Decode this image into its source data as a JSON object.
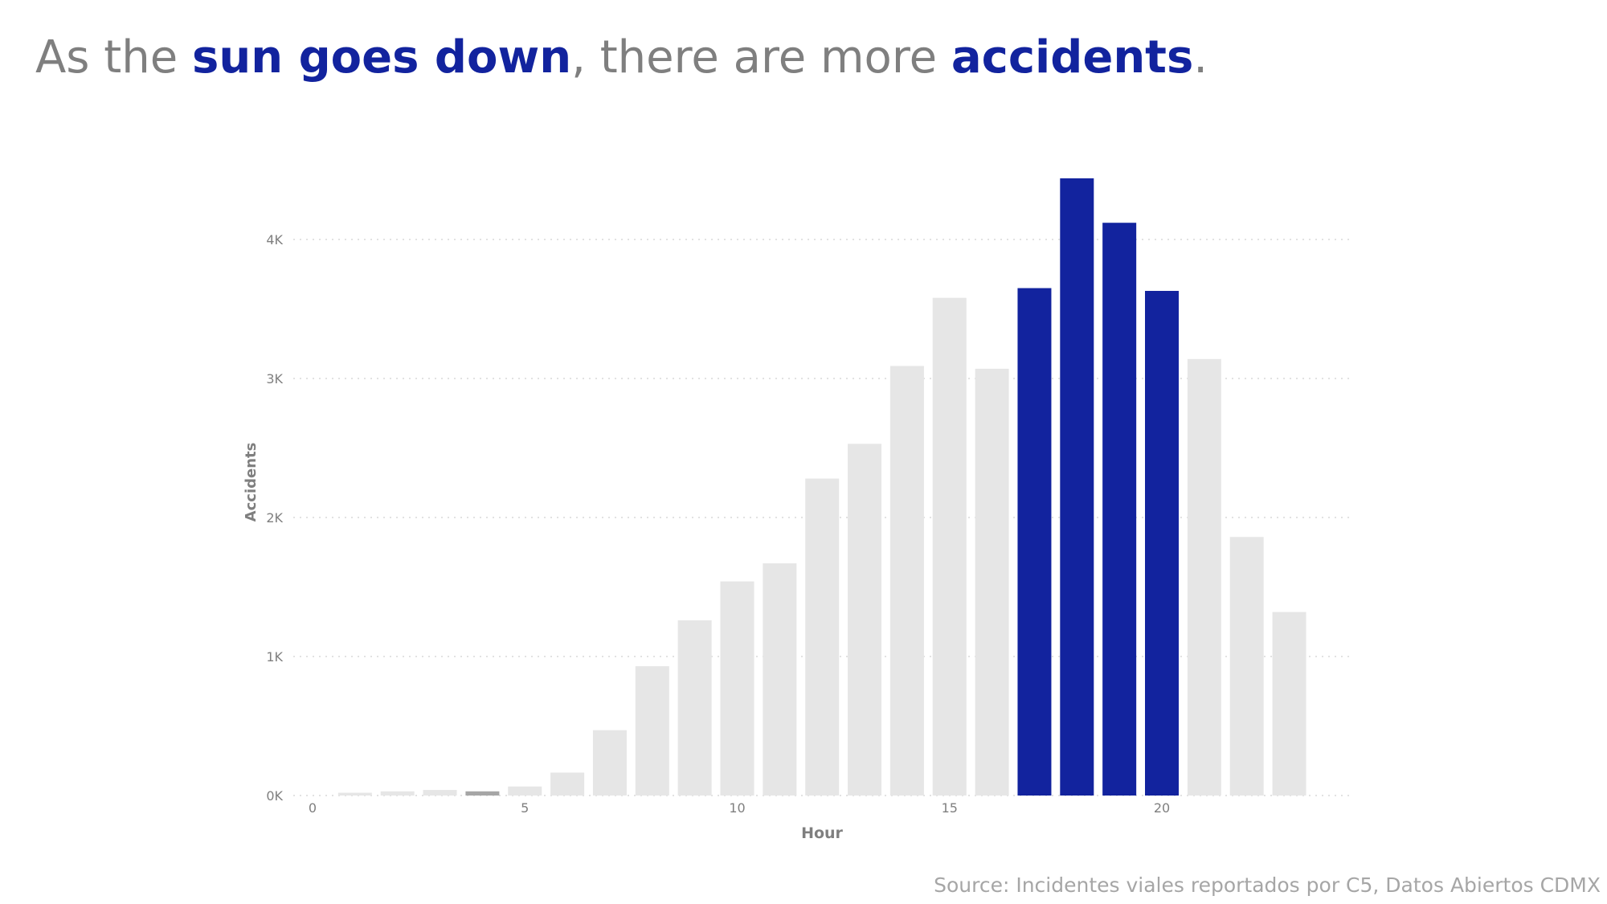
{
  "title": {
    "part1": "As the ",
    "highlight1": "sun goes down",
    "part2": ", there are more ",
    "highlight2": "accidents",
    "part3": "."
  },
  "source": "Source: Incidentes viales reportados por C5, Datos Abiertos CDMX",
  "colors": {
    "highlight": "#12239e",
    "base": "#e6e6e6",
    "low_hour_bar": "#a6a6a6",
    "text_muted": "#7f7f7f",
    "gridline": "#d9d9d9"
  },
  "chart_data": {
    "type": "bar",
    "xlabel": "Hour",
    "ylabel": "Accidents",
    "x_ticks": [
      "0",
      "5",
      "10",
      "15",
      "20"
    ],
    "y_ticks": [
      "0K",
      "1K",
      "2K",
      "3K",
      "4K"
    ],
    "ylim": [
      0,
      4700
    ],
    "grid": true,
    "categories": [
      0,
      1,
      2,
      3,
      4,
      5,
      6,
      7,
      8,
      9,
      10,
      11,
      12,
      13,
      14,
      15,
      16,
      17,
      18,
      19,
      20,
      21,
      22,
      23
    ],
    "values": [
      0,
      20,
      30,
      40,
      30,
      65,
      165,
      470,
      930,
      1260,
      1540,
      1670,
      2280,
      2530,
      3090,
      3580,
      3070,
      3650,
      4440,
      4120,
      3630,
      3140,
      1860,
      1320
    ],
    "highlighted_hours": [
      17,
      18,
      19,
      20
    ],
    "darker_hours": [
      4
    ]
  }
}
